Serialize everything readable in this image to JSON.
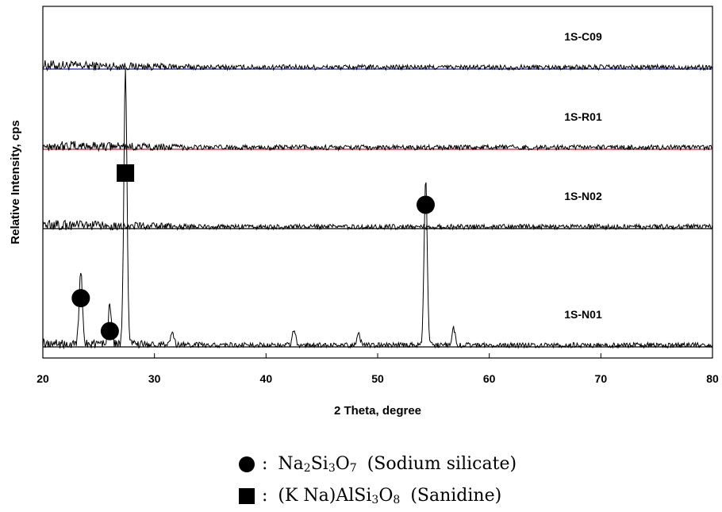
{
  "chart_data": {
    "type": "line",
    "title": "",
    "xlabel": "2 Theta, degree",
    "ylabel": "Relative Intensity, cps",
    "xlim": [
      20,
      80
    ],
    "xticks": [
      "20",
      "30",
      "40",
      "50",
      "60",
      "70",
      "80"
    ],
    "yticks": [],
    "grid": false,
    "series": [
      {
        "name": "1S-C09",
        "baseline_color": "#2222cc",
        "offset_order": 4,
        "peaks": []
      },
      {
        "name": "1S-R01",
        "baseline_color": "#cc2222",
        "offset_order": 3,
        "peaks": []
      },
      {
        "name": "1S-N02",
        "baseline_color": "#000000",
        "offset_order": 2,
        "peaks": []
      },
      {
        "name": "1S-N01",
        "baseline_color": "#000000",
        "offset_order": 1,
        "peaks": [
          {
            "x": 23.4,
            "intensity": 0.27
          },
          {
            "x": 26.0,
            "intensity": 0.15
          },
          {
            "x": 27.4,
            "intensity": 1.0
          },
          {
            "x": 31.6,
            "intensity": 0.05
          },
          {
            "x": 42.5,
            "intensity": 0.06
          },
          {
            "x": 48.3,
            "intensity": 0.04
          },
          {
            "x": 54.3,
            "intensity": 0.6
          },
          {
            "x": 56.8,
            "intensity": 0.06
          }
        ]
      }
    ],
    "annotations": [
      {
        "marker": "circle",
        "phase": "Na2Si3O7",
        "x": 23.4,
        "series": "1S-N01"
      },
      {
        "marker": "circle",
        "phase": "Na2Si3O7",
        "x": 26.0,
        "series": "1S-N01"
      },
      {
        "marker": "square",
        "phase": "(K Na)AlSi3O8",
        "x": 27.4,
        "series": "1S-N01"
      },
      {
        "marker": "circle",
        "phase": "Na2Si3O7",
        "x": 54.3,
        "series": "1S-N01"
      }
    ],
    "legend": [
      {
        "marker": "circle",
        "sep": ":",
        "formula_parts": [
          "Na",
          "2",
          "Si",
          "3",
          "O",
          "7"
        ],
        "name": "(Sodium silicate)"
      },
      {
        "marker": "square",
        "sep": ":",
        "formula_parts": [
          "(K Na)AlSi",
          "3",
          "O",
          "8"
        ],
        "name": "(Sanidine)"
      }
    ],
    "legend_placement": "bottom-center"
  }
}
